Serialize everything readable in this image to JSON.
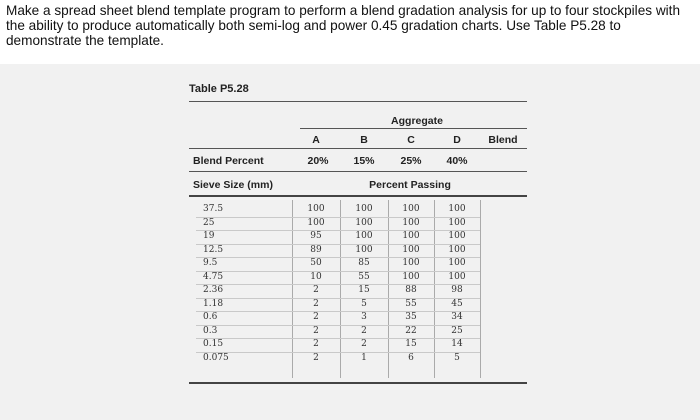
{
  "prompt": "Make a spread sheet blend template program to perform a blend gradation analysis for up to four stockpiles with the ability to produce automatically both semi-log and power 0.45 gradation charts. Use Table P5.28 to demonstrate the template.",
  "table": {
    "caption": "Table P5.28",
    "group_header": "Aggregate",
    "columns": [
      "A",
      "B",
      "C",
      "D",
      "Blend"
    ],
    "blend_percent_label": "Blend Percent",
    "blend_percents": [
      "20%",
      "15%",
      "25%",
      "40%"
    ],
    "sieve_size_label": "Sieve Size (mm)",
    "percent_passing_label": "Percent Passing",
    "rows": [
      {
        "sieve": "37.5",
        "a": "100",
        "b": "100",
        "c": "100",
        "d": "100"
      },
      {
        "sieve": "25",
        "a": "100",
        "b": "100",
        "c": "100",
        "d": "100"
      },
      {
        "sieve": "19",
        "a": "95",
        "b": "100",
        "c": "100",
        "d": "100"
      },
      {
        "sieve": "12.5",
        "a": "89",
        "b": "100",
        "c": "100",
        "d": "100"
      },
      {
        "sieve": "9.5",
        "a": "50",
        "b": "85",
        "c": "100",
        "d": "100"
      },
      {
        "sieve": "4.75",
        "a": "10",
        "b": "55",
        "c": "100",
        "d": "100"
      },
      {
        "sieve": "2.36",
        "a": "2",
        "b": "15",
        "c": "88",
        "d": "98"
      },
      {
        "sieve": "1.18",
        "a": "2",
        "b": "5",
        "c": "55",
        "d": "45"
      },
      {
        "sieve": "0.6",
        "a": "2",
        "b": "3",
        "c": "35",
        "d": "34"
      },
      {
        "sieve": "0.3",
        "a": "2",
        "b": "2",
        "c": "22",
        "d": "25"
      },
      {
        "sieve": "0.15",
        "a": "2",
        "b": "2",
        "c": "15",
        "d": "14"
      },
      {
        "sieve": "0.075",
        "a": "2",
        "b": "1",
        "c": "6",
        "d": "5"
      }
    ]
  }
}
